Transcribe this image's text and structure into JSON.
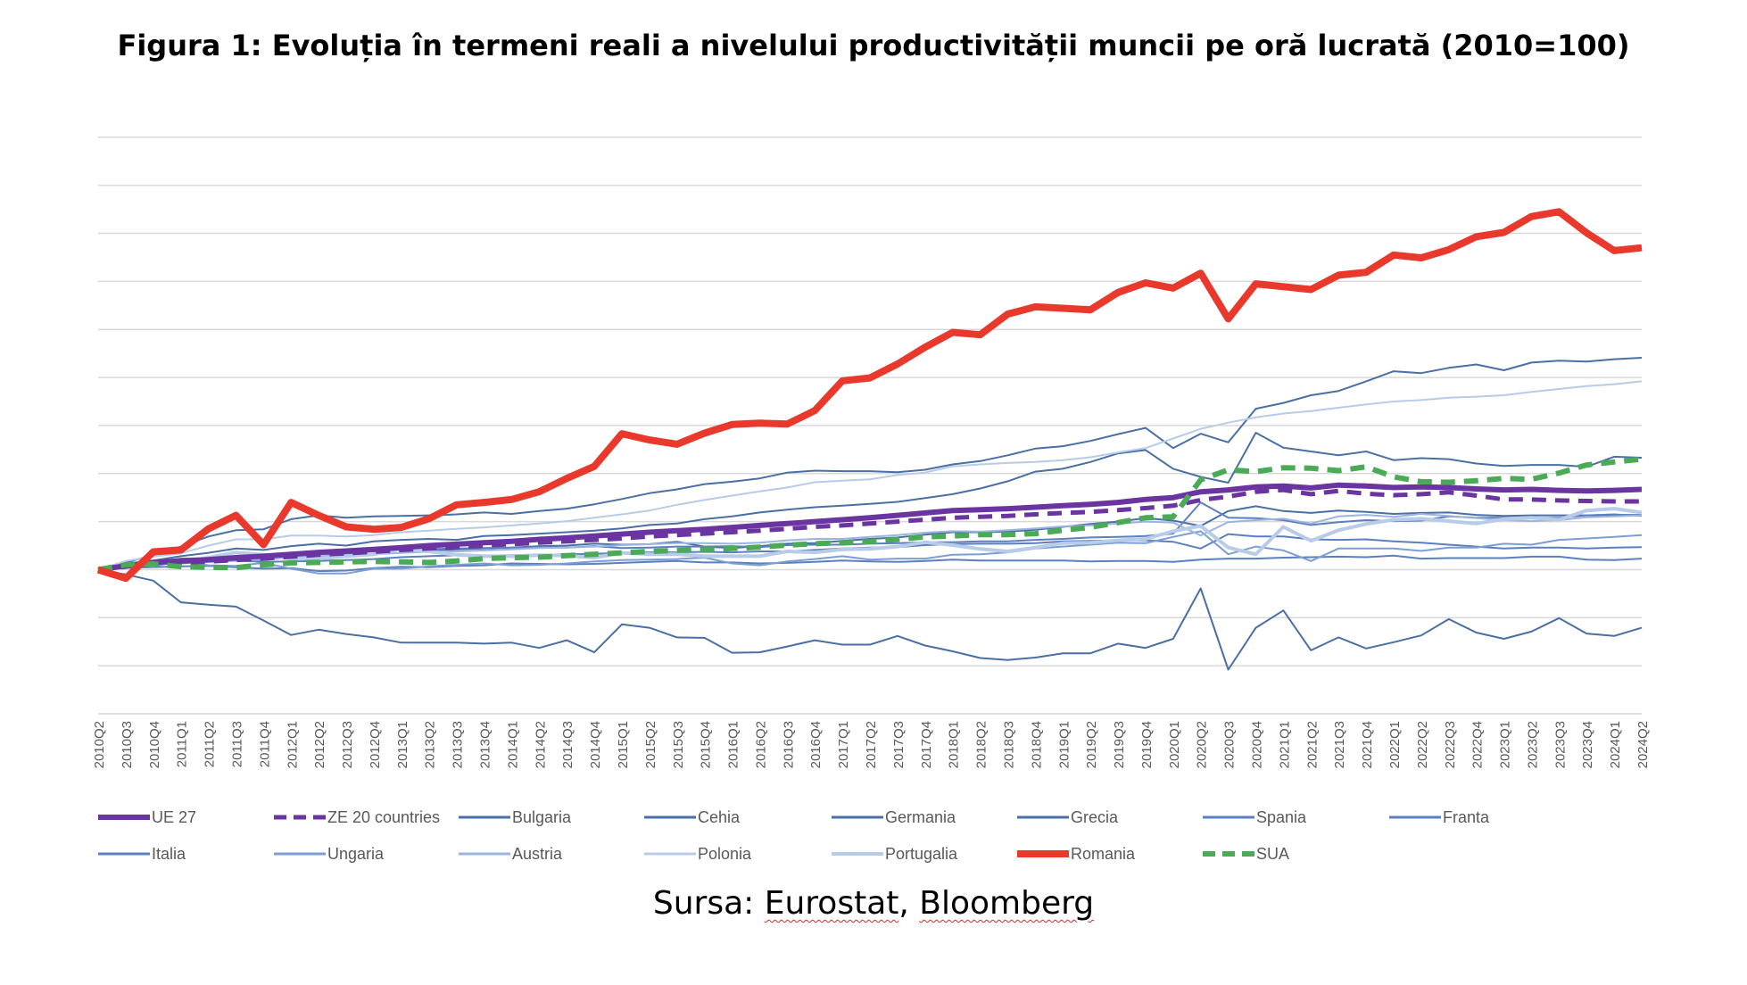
{
  "chart_data": {
    "type": "line",
    "title": "Figura 1: Evoluția în termeni reali a nivelului productivității muncii pe oră lucrată (2010=100)",
    "source_prefix": "Sursa: ",
    "source_name_1": "Eurostat",
    "source_sep": ", ",
    "source_name_2": "Bloomberg",
    "xlabel": "",
    "ylabel": "",
    "ylim": [
      70,
      200
    ],
    "gridlines": [
      70,
      80,
      90,
      100,
      110,
      120,
      130,
      140,
      150,
      160,
      170,
      180,
      190
    ],
    "grid": true,
    "y_tick_labels_visible": false,
    "legend_position": "bottom",
    "x": [
      "2010Q2",
      "2010Q3",
      "2010Q4",
      "2011Q1",
      "2011Q2",
      "2011Q3",
      "2011Q4",
      "2012Q1",
      "2012Q2",
      "2012Q3",
      "2012Q4",
      "2013Q1",
      "2013Q2",
      "2013Q3",
      "2013Q4",
      "2014Q1",
      "2014Q2",
      "2014Q3",
      "2014Q4",
      "2015Q1",
      "2015Q2",
      "2015Q3",
      "2015Q4",
      "2016Q1",
      "2016Q2",
      "2016Q3",
      "2016Q4",
      "2017Q1",
      "2017Q2",
      "2017Q3",
      "2017Q4",
      "2018Q1",
      "2018Q2",
      "2018Q3",
      "2018Q4",
      "2019Q1",
      "2019Q2",
      "2019Q3",
      "2019Q4",
      "2020Q1",
      "2020Q2",
      "2020Q3",
      "2020Q4",
      "2021Q1",
      "2021Q2",
      "2021Q3",
      "2021Q4",
      "2022Q1",
      "2022Q2",
      "2022Q3",
      "2022Q4",
      "2023Q1",
      "2023Q2",
      "2023Q3",
      "2023Q4",
      "2024Q1",
      "2024Q2"
    ],
    "series": [
      {
        "name": "UE 27",
        "color": "#6a34a1",
        "width": 6,
        "dash": "",
        "values": [
          100,
          100.8,
          101.5,
          101.8,
          102.1,
          102.5,
          102.8,
          103.2,
          103.6,
          103.9,
          104.2,
          104.6,
          105,
          105.3,
          105.6,
          105.9,
          106.3,
          106.6,
          107,
          107.4,
          107.8,
          108.1,
          108.4,
          108.8,
          109.2,
          109.6,
          110,
          110.4,
          110.8,
          111.3,
          111.8,
          112.3,
          112.5,
          112.7,
          113,
          113.3,
          113.6,
          114,
          114.6,
          115,
          116.2,
          116.6,
          117.2,
          117.4,
          117,
          117.6,
          117.4,
          117.1,
          117.2,
          117.1,
          116.8,
          116.6,
          116.7,
          116.5,
          116.4,
          116.5,
          116.7
        ]
      },
      {
        "name": "ZE 20 countries",
        "color": "#6a34a1",
        "width": 5,
        "dash": "16 10",
        "values": [
          100,
          100.6,
          101.2,
          101.4,
          101.7,
          102,
          102.3,
          102.7,
          103.1,
          103.4,
          103.7,
          104.1,
          104.4,
          104.7,
          105,
          105.3,
          105.6,
          105.9,
          106.2,
          106.5,
          106.9,
          107.2,
          107.5,
          107.8,
          108.1,
          108.5,
          108.9,
          109.2,
          109.6,
          110,
          110.4,
          110.8,
          111,
          111.2,
          111.5,
          111.8,
          112,
          112.4,
          112.8,
          113.3,
          114.5,
          115.2,
          116.2,
          116.6,
          115.7,
          116.4,
          115.8,
          115.5,
          115.7,
          116.1,
          115.4,
          114.6,
          114.6,
          114.4,
          114.3,
          114.2,
          114.2
        ]
      },
      {
        "name": "Bulgaria",
        "color": "#4a6fa5",
        "width": 2,
        "dash": "",
        "values": [
          100,
          101.5,
          103,
          104.8,
          106.9,
          108.2,
          108.4,
          110.5,
          111.3,
          110.8,
          111.1,
          111.2,
          111.3,
          111.5,
          111.9,
          111.6,
          112.2,
          112.7,
          113.6,
          114.7,
          115.9,
          116.7,
          117.8,
          118.3,
          119,
          120.2,
          120.6,
          120.5,
          120.5,
          120.3,
          120.8,
          121.9,
          122.6,
          123.8,
          125.2,
          125.7,
          126.8,
          128.2,
          129.5,
          125.3,
          128.3,
          126.5,
          133.5,
          134.7,
          136.3,
          137.2,
          139.2,
          141.3,
          140.9,
          142,
          142.7,
          141.5,
          143.1,
          143.5,
          143.3,
          143.8,
          144.1
        ]
      },
      {
        "name": "Cehia",
        "color": "#4a6fa5",
        "width": 2,
        "dash": "",
        "values": [
          100,
          101.2,
          101.9,
          102.8,
          103.5,
          104.4,
          104.1,
          104.9,
          105.4,
          105,
          105.9,
          106.2,
          106.4,
          106.2,
          107,
          107.2,
          107.5,
          107.8,
          108.1,
          108.6,
          109.3,
          109.6,
          110.5,
          111.1,
          111.9,
          112.5,
          113,
          113.3,
          113.7,
          114.1,
          114.9,
          115.7,
          116.9,
          118.4,
          120.4,
          121,
          122.4,
          124.2,
          124.9,
          121,
          119.3,
          118.1,
          128.5,
          125.4,
          124.6,
          123.8,
          124.6,
          122.8,
          123.2,
          123,
          122.1,
          121.6,
          121.8,
          121.8,
          121.4,
          123.5,
          123.3
        ]
      },
      {
        "name": "Germania",
        "color": "#4a6fa5",
        "width": 2,
        "dash": "",
        "values": [
          100,
          101.4,
          101.6,
          102.3,
          102.4,
          102.6,
          102.8,
          103.3,
          103.3,
          103.2,
          103.9,
          104.2,
          104,
          104.2,
          104.4,
          104.6,
          104.9,
          105,
          105.4,
          105.2,
          105.3,
          105.8,
          104.8,
          104.5,
          104.9,
          105.4,
          105.5,
          106,
          106.4,
          106.7,
          107.3,
          107.8,
          107.8,
          107.9,
          108.3,
          108.9,
          109.5,
          110,
          110.7,
          110.2,
          109.1,
          112.2,
          113.2,
          112.2,
          111.8,
          112.3,
          112,
          111.6,
          111.8,
          111.9,
          111.4,
          111.2,
          111.3,
          111.3,
          111.3,
          111.4,
          111.4
        ]
      },
      {
        "name": "Grecia",
        "color": "#4a6fa5",
        "width": 2,
        "dash": "",
        "values": [
          100,
          99,
          97.7,
          93.2,
          92.7,
          92.3,
          89.4,
          86.4,
          87.5,
          86.6,
          85.9,
          84.8,
          84.8,
          84.8,
          84.6,
          84.8,
          83.7,
          85.3,
          82.8,
          88.6,
          87.9,
          85.9,
          85.8,
          82.7,
          82.8,
          84,
          85.3,
          84.4,
          84.4,
          86.2,
          84.2,
          83,
          81.6,
          81.2,
          81.7,
          82.6,
          82.6,
          84.6,
          83.7,
          85.6,
          96.1,
          79.2,
          87.9,
          91.5,
          83.2,
          85.9,
          83.6,
          84.9,
          86.3,
          89.7,
          86.9,
          85.6,
          87.1,
          89.9,
          86.7,
          86.2,
          87.9
        ]
      },
      {
        "name": "Spania",
        "color": "#5b7fbf",
        "width": 2,
        "dash": "",
        "values": [
          100,
          100.6,
          101.1,
          101.3,
          101.7,
          102.3,
          102.6,
          103.1,
          103.3,
          103.6,
          103.8,
          104.1,
          104.3,
          104.4,
          104.5,
          104.6,
          104.7,
          104.6,
          104.9,
          104.5,
          104.6,
          104.8,
          104.8,
          104.9,
          104.7,
          105.1,
          105.2,
          105.2,
          105.4,
          105.5,
          105.7,
          105.7,
          105.9,
          105.9,
          106.2,
          106.4,
          106.7,
          106.8,
          107,
          107.5,
          114,
          110.8,
          110.7,
          110.3,
          109.3,
          109.9,
          110.3,
          110.1,
          110.2,
          111.1,
          110.8,
          110.8,
          110.8,
          110.8,
          111.3,
          111.5,
          111.2
        ]
      },
      {
        "name": "Franta",
        "color": "#5b7fbf",
        "width": 2,
        "dash": "",
        "values": [
          100,
          100.6,
          101.1,
          101.4,
          101.6,
          101.9,
          101.6,
          101.7,
          101.8,
          102,
          102.2,
          102.6,
          102.8,
          103,
          102.9,
          103,
          103.1,
          103.2,
          103.3,
          103.5,
          103.6,
          103.6,
          103.7,
          103.6,
          103.8,
          103.8,
          104.1,
          104.4,
          104.6,
          104.7,
          105.1,
          105.3,
          105.4,
          105.4,
          105.5,
          105.9,
          106,
          106.1,
          106.1,
          105.8,
          104.4,
          107.4,
          106.9,
          106.9,
          106.3,
          106.2,
          106.3,
          105.9,
          105.6,
          105.2,
          104.8,
          104.4,
          104.6,
          104.6,
          104.4,
          104.6,
          104.7
        ]
      },
      {
        "name": "Italia",
        "color": "#5b7fbf",
        "width": 2,
        "dash": "",
        "values": [
          100,
          100.4,
          100.5,
          100.7,
          100.8,
          100.5,
          100.2,
          100.3,
          99.7,
          99.8,
          100.3,
          100.6,
          100.5,
          100.8,
          100.9,
          101.3,
          101.2,
          101.1,
          101.2,
          101.4,
          101.6,
          101.8,
          101.5,
          101.5,
          101.3,
          101.4,
          101.6,
          101.9,
          101.7,
          101.6,
          101.8,
          102.1,
          101.9,
          101.9,
          101.9,
          101.9,
          101.7,
          101.8,
          101.8,
          101.6,
          102.1,
          102.3,
          102.3,
          102.5,
          102.6,
          102.7,
          102.6,
          102.9,
          102.3,
          102.4,
          102.4,
          102.4,
          102.7,
          102.7,
          102.1,
          102,
          102.3
        ]
      },
      {
        "name": "Ungaria",
        "color": "#7b9ed4",
        "width": 2,
        "dash": "",
        "values": [
          100,
          101.3,
          100.6,
          101.9,
          100.9,
          100.8,
          101.4,
          100.2,
          99.2,
          99.2,
          100.2,
          100.2,
          100.7,
          101,
          101.3,
          100.9,
          101,
          101.3,
          101.7,
          102,
          102.1,
          102.2,
          102.5,
          101.3,
          100.9,
          101.7,
          102.2,
          102.8,
          102.1,
          102.3,
          102.3,
          103.1,
          103.2,
          103.6,
          104.4,
          104.8,
          105.2,
          105.6,
          105.5,
          106.8,
          108,
          103.2,
          104.8,
          104,
          101.8,
          104.4,
          104.4,
          104.4,
          103.9,
          104.6,
          104.6,
          105.4,
          105.2,
          106.2,
          106.5,
          106.8,
          107.2
        ]
      },
      {
        "name": "Austria",
        "color": "#9bb5df",
        "width": 2,
        "dash": "",
        "values": [
          100,
          100.6,
          101.2,
          101.8,
          102.1,
          102.2,
          102,
          102.6,
          102.8,
          103,
          103.2,
          103.5,
          103.7,
          103.8,
          104,
          104.2,
          104.5,
          104.6,
          104.8,
          105.1,
          105.3,
          105.5,
          105.5,
          105.4,
          105.6,
          106.1,
          106.4,
          106.4,
          106.8,
          107.2,
          107.7,
          108,
          107.9,
          108.2,
          108.6,
          109,
          109.2,
          109.6,
          110,
          109.8,
          107.1,
          109.9,
          110.3,
          110.6,
          109.6,
          111.1,
          111.4,
          111,
          111.6,
          111.2,
          110.7,
          110.3,
          110.1,
          110.3,
          110.9,
          111.1,
          111.3
        ]
      },
      {
        "name": "Polonia",
        "color": "#b8cbe8",
        "width": 2,
        "dash": "",
        "values": [
          100,
          101.8,
          102.7,
          103.4,
          105,
          106.3,
          106.3,
          107.1,
          107.1,
          106.9,
          107.2,
          107.8,
          108.1,
          108.5,
          108.8,
          109.2,
          109.6,
          110.1,
          110.8,
          111.5,
          112.3,
          113.5,
          114.5,
          115.4,
          116.3,
          117.1,
          118.2,
          118.5,
          118.8,
          119.7,
          120.2,
          121.5,
          121.9,
          122.2,
          122.4,
          122.8,
          123.4,
          124.4,
          125.3,
          127.3,
          129.3,
          130.6,
          131.7,
          132.5,
          133,
          133.7,
          134.4,
          135,
          135.3,
          135.8,
          136,
          136.3,
          137,
          137.6,
          138.2,
          138.6,
          139.2
        ]
      },
      {
        "name": "Portugalia",
        "color": "#b8cbe8",
        "width": 4,
        "dash": "",
        "values": [
          100,
          100.5,
          101.4,
          101.6,
          102.5,
          103.6,
          103.1,
          102.3,
          102.3,
          102.8,
          103.2,
          104.3,
          103.8,
          103.1,
          102.8,
          102.8,
          103,
          102.9,
          102.5,
          103.5,
          103.2,
          103.2,
          102.8,
          102.8,
          102.8,
          103.8,
          103.6,
          104.2,
          104.3,
          104.8,
          105.7,
          105.1,
          104.3,
          103.8,
          104.6,
          105.5,
          105.6,
          106.1,
          106.4,
          108,
          109.1,
          104.6,
          103.2,
          108.9,
          106,
          108.2,
          109.5,
          110.4,
          110.6,
          110.1,
          109.6,
          110.5,
          110.8,
          110.4,
          112.3,
          112.7,
          111.9
        ]
      },
      {
        "name": "Romania",
        "color": "#e8392c",
        "width": 8,
        "dash": "",
        "values": [
          100,
          98.2,
          103.7,
          104.1,
          108.5,
          111.3,
          105.2,
          114,
          111.3,
          108.9,
          108.4,
          108.8,
          110.6,
          113.5,
          114,
          114.6,
          116.2,
          119,
          121.5,
          128.3,
          127,
          126.1,
          128.4,
          130.2,
          130.5,
          130.3,
          133.1,
          139.3,
          139.9,
          142.8,
          146.3,
          149.4,
          148.9,
          153.2,
          154.7,
          154.4,
          154.1,
          157.7,
          159.7,
          158.6,
          161.7,
          152.2,
          159.5,
          158.9,
          158.3,
          161.3,
          161.9,
          165.5,
          164.9,
          166.6,
          169.3,
          170.2,
          173.5,
          174.5,
          170.1,
          166.4,
          167
        ]
      },
      {
        "name": "SUA",
        "color": "#4aaa55",
        "width": 6,
        "dash": "16 10",
        "values": [
          100,
          101,
          101.2,
          100.6,
          100.5,
          100.4,
          101,
          101.4,
          101.5,
          101.6,
          101.7,
          101.6,
          101.5,
          101.8,
          102.3,
          102.5,
          102.6,
          102.9,
          103.2,
          103.5,
          103.8,
          104,
          104.2,
          104.4,
          104.7,
          105.1,
          105.4,
          105.6,
          105.8,
          106.3,
          106.8,
          107,
          107.3,
          107.3,
          107.5,
          108.2,
          108.8,
          109.8,
          110.8,
          111,
          118.7,
          120.8,
          120.4,
          121.2,
          121.1,
          120.6,
          121.4,
          119.3,
          118.3,
          118.2,
          118.5,
          119,
          118.8,
          120.1,
          121.8,
          122.4,
          123
        ]
      }
    ]
  }
}
